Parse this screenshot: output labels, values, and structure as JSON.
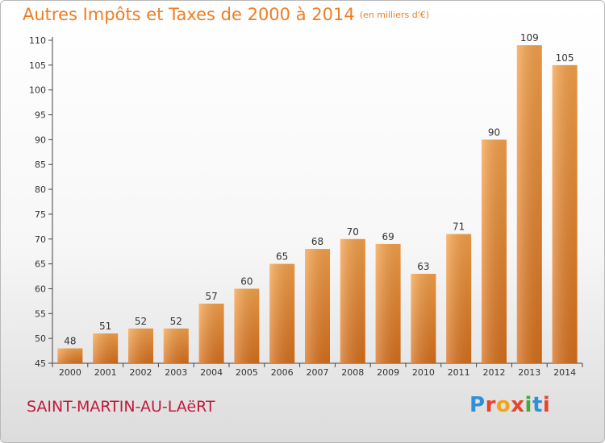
{
  "chart_data": {
    "type": "bar",
    "title": "Autres Impôts et Taxes de 2000 à 2014",
    "subtitle": "(en milliers d'€)",
    "categories": [
      "2000",
      "2001",
      "2002",
      "2003",
      "2004",
      "2005",
      "2006",
      "2007",
      "2008",
      "2009",
      "2010",
      "2011",
      "2012",
      "2013",
      "2014"
    ],
    "values": [
      48,
      51,
      52,
      52,
      57,
      60,
      65,
      68,
      70,
      69,
      63,
      71,
      90,
      109,
      105
    ],
    "ylim": [
      45,
      110
    ],
    "yticks": [
      45,
      50,
      55,
      60,
      65,
      70,
      75,
      80,
      85,
      90,
      95,
      100,
      105,
      110
    ],
    "grid": false,
    "xlabel": "",
    "ylabel": "",
    "bar_color": "#ef8f33"
  },
  "footer": {
    "place": "SAINT-MARTIN-AU-LAëRT",
    "brand": [
      "P",
      "r",
      "o",
      "x",
      "i",
      "t",
      "i"
    ],
    "brand_colors": [
      "#2f8fd8",
      "#e8432c",
      "#f5a316",
      "#e8432c",
      "#4aa838",
      "#2f8fd8",
      "#e8432c"
    ]
  },
  "colors": {
    "title": "#ef7d22",
    "place": "#c4193d"
  }
}
